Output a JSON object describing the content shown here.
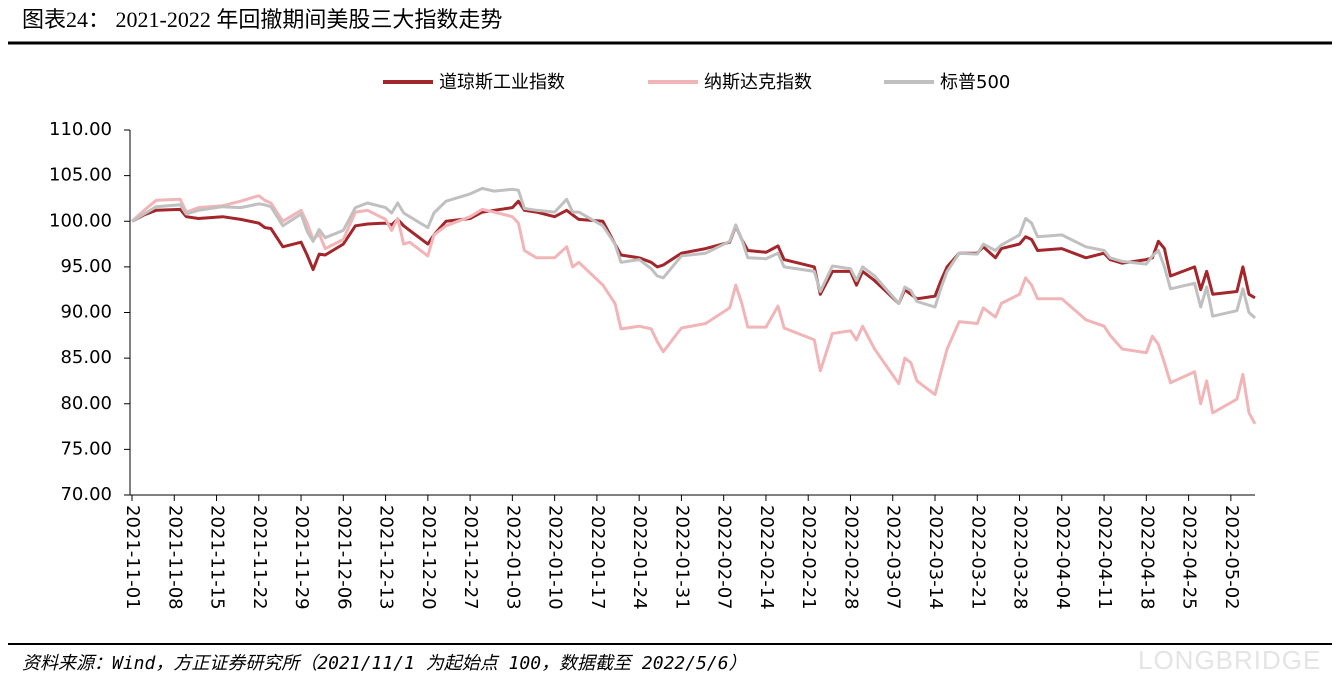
{
  "chart_data": {
    "type": "line",
    "title": "图表24： 2021-2022 年回撤期间美股三大指数走势",
    "source": "资料来源：Wind，方正证券研究所（2021/11/1 为起始点 100，数据截至 2022/5/6）",
    "watermark": "LONGBRIDGE",
    "x": [
      "2021-11-01",
      "2021-11-03",
      "2021-11-05",
      "2021-11-09",
      "2021-11-10",
      "2021-11-12",
      "2021-11-16",
      "2021-11-19",
      "2021-11-22",
      "2021-11-23",
      "2021-11-24",
      "2021-11-26",
      "2021-11-29",
      "2021-11-30",
      "2021-12-01",
      "2021-12-02",
      "2021-12-03",
      "2021-12-06",
      "2021-12-08",
      "2021-12-10",
      "2021-12-13",
      "2021-12-14",
      "2021-12-15",
      "2021-12-16",
      "2021-12-17",
      "2021-12-20",
      "2021-12-21",
      "2021-12-23",
      "2021-12-27",
      "2021-12-29",
      "2021-12-31",
      "2022-01-03",
      "2022-01-04",
      "2022-01-05",
      "2022-01-07",
      "2022-01-10",
      "2022-01-12",
      "2022-01-13",
      "2022-01-14",
      "2022-01-18",
      "2022-01-20",
      "2022-01-21",
      "2022-01-24",
      "2022-01-26",
      "2022-01-27",
      "2022-01-28",
      "2022-01-31",
      "2022-02-04",
      "2022-02-08",
      "2022-02-09",
      "2022-02-10",
      "2022-02-11",
      "2022-02-14",
      "2022-02-16",
      "2022-02-17",
      "2022-02-22",
      "2022-02-23",
      "2022-02-25",
      "2022-02-28",
      "2022-03-01",
      "2022-03-02",
      "2022-03-04",
      "2022-03-08",
      "2022-03-09",
      "2022-03-10",
      "2022-03-11",
      "2022-03-14",
      "2022-03-15",
      "2022-03-16",
      "2022-03-18",
      "2022-03-21",
      "2022-03-22",
      "2022-03-24",
      "2022-03-25",
      "2022-03-28",
      "2022-03-29",
      "2022-03-30",
      "2022-03-31",
      "2022-04-04",
      "2022-04-08",
      "2022-04-11",
      "2022-04-12",
      "2022-04-14",
      "2022-04-18",
      "2022-04-19",
      "2022-04-20",
      "2022-04-21",
      "2022-04-22",
      "2022-04-26",
      "2022-04-27",
      "2022-04-28",
      "2022-04-29",
      "2022-05-03",
      "2022-05-04",
      "2022-05-05",
      "2022-05-06"
    ],
    "series": [
      {
        "name": "道琼斯工业指数",
        "color": "#a3262b",
        "values": [
          100,
          100.7,
          101.2,
          101.3,
          100.5,
          100.3,
          100.5,
          100.2,
          99.8,
          99.3,
          99.2,
          97.2,
          97.7,
          96.3,
          94.7,
          96.4,
          96.3,
          97.5,
          99.5,
          99.7,
          99.8,
          99.6,
          100.2,
          99.5,
          99.0,
          97.5,
          98.5,
          100.0,
          100.3,
          101.0,
          101.2,
          101.5,
          102.2,
          101.2,
          101.0,
          100.5,
          101.2,
          100.7,
          100.2,
          100.0,
          97.5,
          96.3,
          96.0,
          95.5,
          95.0,
          95.2,
          96.5,
          97.0,
          97.7,
          99.5,
          98.0,
          96.8,
          96.6,
          97.3,
          95.8,
          95.0,
          92.0,
          94.5,
          94.5,
          93.0,
          94.5,
          93.5,
          91.0,
          92.5,
          92.0,
          91.5,
          91.8,
          93.5,
          95.0,
          96.5,
          96.5,
          97.2,
          96.0,
          97.0,
          97.5,
          98.3,
          98.0,
          96.8,
          97.0,
          96.0,
          96.5,
          95.8,
          95.4,
          95.8,
          96.0,
          97.8,
          97.0,
          94.0,
          95.0,
          92.5,
          94.5,
          92.0,
          92.3,
          95.0,
          92.0,
          91.6
        ]
      },
      {
        "name": "纳斯达克指数",
        "color": "#f2b5b7",
        "values": [
          100,
          101.2,
          102.3,
          102.4,
          101.0,
          101.5,
          101.7,
          102.2,
          102.8,
          102.3,
          102.0,
          100.0,
          101.2,
          99.8,
          98.0,
          98.6,
          97.0,
          98.0,
          101.0,
          101.2,
          100.2,
          99.0,
          100.3,
          97.5,
          97.7,
          96.2,
          98.5,
          99.5,
          100.5,
          101.3,
          101.0,
          100.5,
          99.8,
          96.8,
          96.0,
          96.0,
          97.2,
          95.0,
          95.5,
          93.0,
          91.0,
          88.2,
          88.5,
          88.2,
          86.8,
          85.7,
          88.3,
          88.8,
          90.5,
          93.0,
          91.0,
          88.4,
          88.4,
          90.7,
          88.3,
          87.0,
          83.6,
          87.7,
          88.0,
          87.0,
          88.5,
          86.0,
          82.2,
          85.0,
          84.5,
          82.5,
          81.0,
          83.5,
          86.0,
          89.0,
          88.8,
          90.5,
          89.5,
          91.0,
          92.0,
          93.8,
          93.0,
          91.5,
          91.5,
          89.2,
          88.5,
          87.5,
          86.0,
          85.6,
          87.4,
          86.5,
          84.5,
          82.3,
          83.5,
          80.0,
          82.5,
          79.0,
          80.5,
          83.2,
          79.0,
          77.8
        ]
      },
      {
        "name": "标普500",
        "color": "#c0c0c0",
        "values": [
          100,
          100.8,
          101.6,
          101.8,
          100.8,
          101.2,
          101.6,
          101.5,
          101.9,
          101.8,
          101.6,
          99.5,
          100.8,
          98.9,
          97.8,
          99.1,
          98.2,
          99.0,
          101.5,
          102.0,
          101.5,
          100.9,
          102.0,
          100.9,
          100.5,
          99.3,
          100.9,
          102.2,
          103.0,
          103.6,
          103.3,
          103.5,
          103.4,
          101.4,
          101.2,
          101.0,
          102.4,
          101.0,
          101.0,
          99.5,
          97.5,
          95.5,
          95.8,
          94.8,
          94.0,
          93.8,
          96.2,
          96.5,
          97.8,
          99.6,
          98.0,
          96.0,
          95.9,
          96.5,
          95.0,
          94.5,
          92.3,
          95.1,
          94.8,
          93.5,
          95.0,
          94.0,
          91.0,
          92.8,
          92.4,
          91.2,
          90.6,
          92.7,
          94.5,
          96.5,
          96.4,
          97.5,
          96.8,
          97.4,
          98.5,
          100.3,
          99.8,
          98.3,
          98.5,
          97.2,
          96.8,
          96.0,
          95.6,
          95.3,
          96.2,
          96.8,
          95.0,
          92.6,
          93.2,
          90.6,
          92.8,
          89.6,
          90.2,
          92.6,
          90.0,
          89.4
        ]
      }
    ],
    "xlim": [
      "2021-11-01",
      "2022-05-06"
    ],
    "xticks": [
      "2021-11-01",
      "2021-11-08",
      "2021-11-15",
      "2021-11-22",
      "2021-11-29",
      "2021-12-06",
      "2021-12-13",
      "2021-12-20",
      "2021-12-27",
      "2022-01-03",
      "2022-01-10",
      "2022-01-17",
      "2022-01-24",
      "2022-01-31",
      "2022-02-07",
      "2022-02-14",
      "2022-02-21",
      "2022-02-28",
      "2022-03-07",
      "2022-03-14",
      "2022-03-21",
      "2022-03-28",
      "2022-04-04",
      "2022-04-11",
      "2022-04-18",
      "2022-04-25",
      "2022-05-02"
    ],
    "ylim": [
      70,
      110
    ],
    "yticks": [
      {
        "value": 70,
        "label": "70.00"
      },
      {
        "value": 75,
        "label": "75.00"
      },
      {
        "value": 80,
        "label": "80.00"
      },
      {
        "value": 85,
        "label": "85.00"
      },
      {
        "value": 90,
        "label": "90.00"
      },
      {
        "value": 95,
        "label": "95.00"
      },
      {
        "value": 100,
        "label": "100.00"
      },
      {
        "value": 105,
        "label": "105.00"
      },
      {
        "value": 110,
        "label": "110.00"
      }
    ],
    "grid": false,
    "legend": "top"
  }
}
